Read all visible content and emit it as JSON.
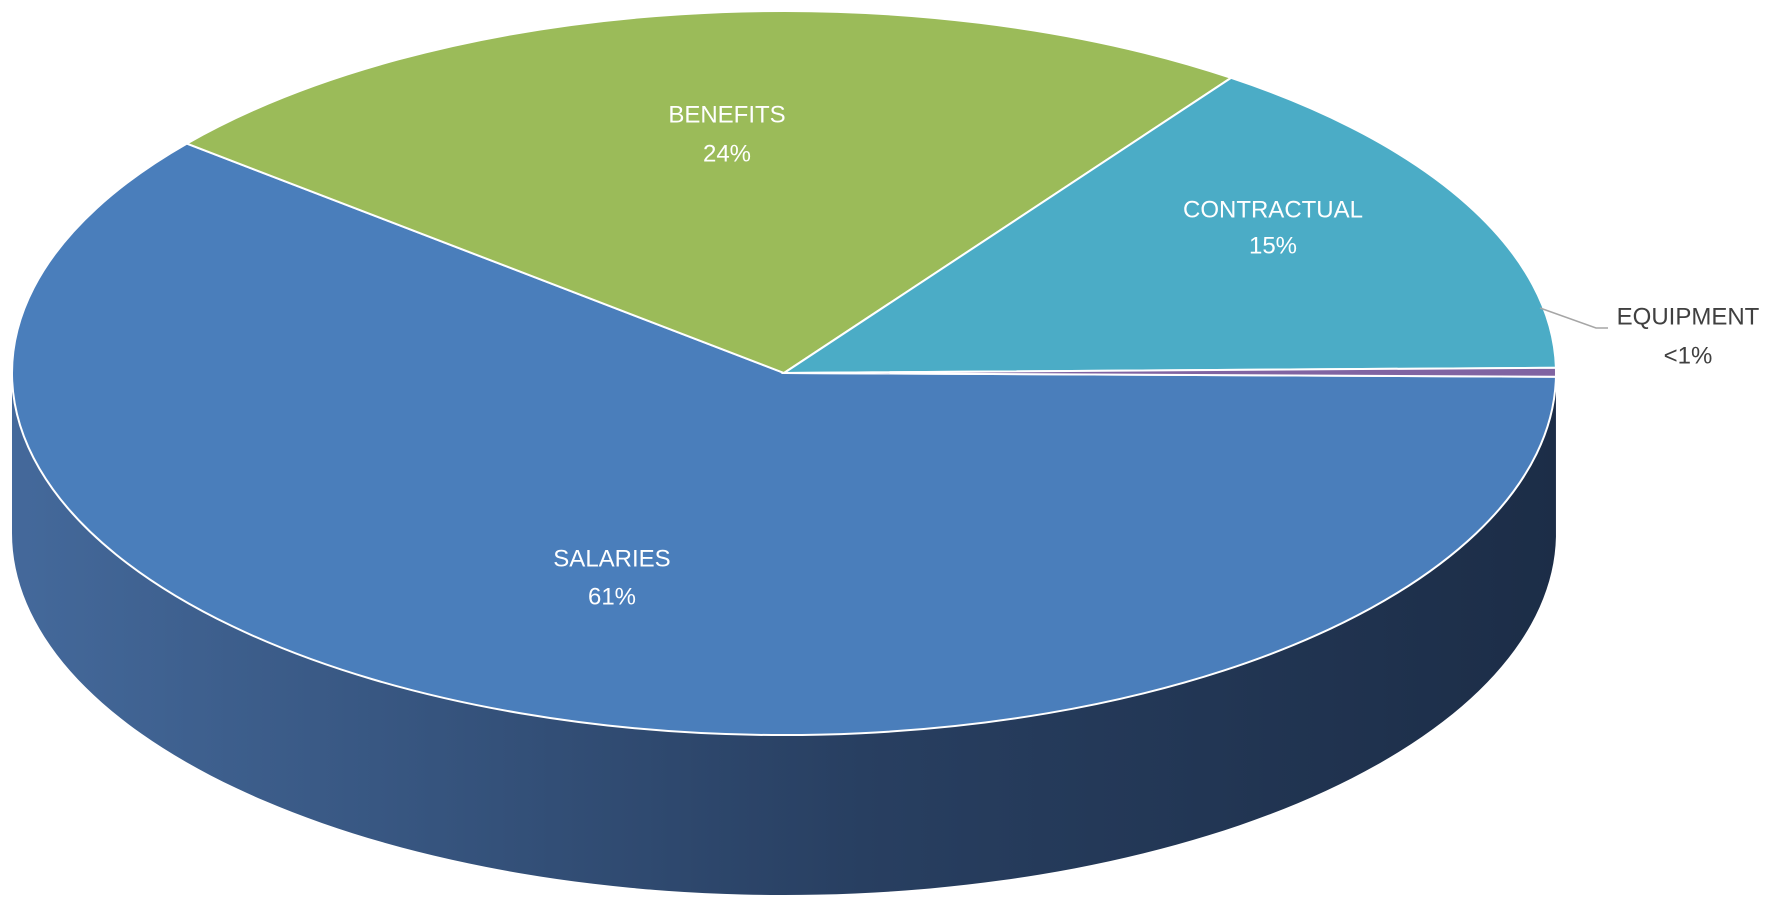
{
  "chart_data": {
    "type": "pie",
    "categories": [
      "SALARIES",
      "BENEFITS",
      "CONTRACTUAL",
      "EQUIPMENT"
    ],
    "values": [
      61,
      24,
      15,
      0.4
    ],
    "value_labels": [
      "61%",
      "24%",
      "15%",
      "<1%"
    ],
    "colors": [
      "#4a7ebb",
      "#9bbb59",
      "#4bacc6",
      "#8064a2"
    ]
  }
}
